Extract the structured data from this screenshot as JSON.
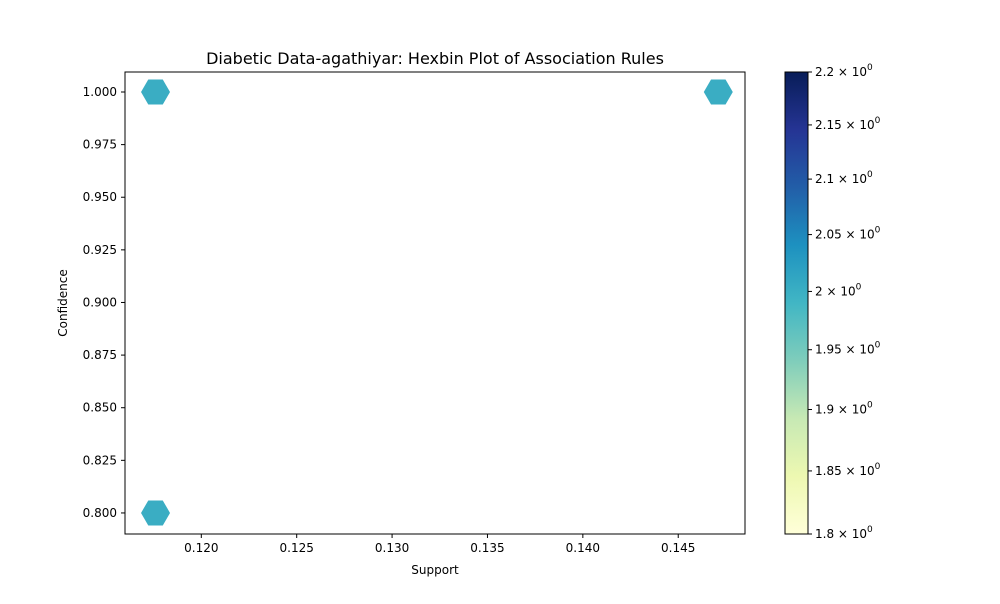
{
  "chart_data": {
    "type": "hexbin",
    "title": "Diabetic Data-agathiyar: Hexbin Plot of Association Rules",
    "xlabel": "Support",
    "ylabel": "Confidence",
    "xlim": [
      0.116,
      0.1485
    ],
    "ylim": [
      0.79,
      1.0095
    ],
    "xticks": [
      0.12,
      0.125,
      0.13,
      0.135,
      0.14,
      0.145
    ],
    "xtick_labels": [
      "0.120",
      "0.125",
      "0.130",
      "0.135",
      "0.140",
      "0.145"
    ],
    "yticks": [
      0.8,
      0.825,
      0.85,
      0.875,
      0.9,
      0.925,
      0.95,
      0.975,
      1.0
    ],
    "ytick_labels": [
      "0.800",
      "0.825",
      "0.850",
      "0.875",
      "0.900",
      "0.925",
      "0.950",
      "0.975",
      "1.000"
    ],
    "points": [
      {
        "x": 0.1176,
        "y": 1.0,
        "count": 2
      },
      {
        "x": 0.1471,
        "y": 1.0,
        "count": 2
      },
      {
        "x": 0.1176,
        "y": 0.8,
        "count": 2
      }
    ],
    "colormap": "YlGnBu",
    "colorbar": {
      "min": 1.8,
      "max": 2.2,
      "scale": "log",
      "ticks": [
        1.8,
        1.85,
        1.9,
        1.95,
        2.0,
        2.05,
        2.1,
        2.15,
        2.2
      ],
      "tick_labels": [
        "1.8",
        "1.85",
        "1.9",
        "1.95",
        "2",
        "2.05",
        "2.1",
        "2.15",
        "2.2"
      ],
      "exponent": "0",
      "tick_prefix": "× 10"
    },
    "hex_color": "#3aadc3",
    "grid": false
  }
}
